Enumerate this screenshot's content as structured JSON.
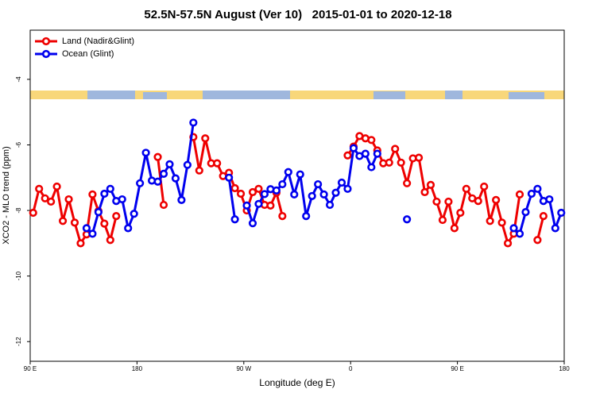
{
  "chart_data": {
    "type": "line",
    "title": "52.5N-57.5N August (Ver 10)   2015-01-01 to 2020-12-18",
    "xlabel": "Longitude (deg E)",
    "ylabel": "XCO2 - MLO trend (ppm)",
    "x": [
      92.5,
      97.5,
      102.5,
      107.5,
      112.5,
      117.5,
      122.5,
      127.5,
      132.5,
      137.5,
      142.5,
      147.5,
      152.5,
      157.5,
      162.5,
      167.5,
      172.5,
      177.5,
      182.5,
      187.5,
      192.5,
      197.5,
      202.5,
      207.5,
      212.5,
      217.5,
      222.5,
      227.5,
      232.5,
      237.5,
      242.5,
      247.5,
      252.5,
      257.5,
      262.5,
      267.5,
      272.5,
      277.5,
      282.5,
      287.5,
      292.5,
      297.5,
      302.5,
      307.5,
      312.5,
      317.5,
      322.5,
      327.5,
      332.5,
      337.5,
      342.5,
      347.5,
      352.5,
      357.5,
      362.5,
      367.5,
      372.5,
      377.5,
      382.5,
      387.5,
      392.5,
      397.5,
      402.5,
      407.5,
      412.5,
      417.5,
      422.5,
      427.5,
      432.5,
      437.5,
      442.5,
      447.5,
      452.5,
      457.5,
      462.5,
      467.5,
      472.5,
      477.5,
      482.5,
      487.5,
      492.5,
      497.5,
      502.5,
      507.5,
      512.5,
      517.5,
      522.5,
      527.5,
      532.5,
      537.5
    ],
    "series": [
      {
        "name": "Land (Nadir&Glint)",
        "color": "#ee0000",
        "values": [
          -8.07,
          -7.34,
          -7.63,
          -7.73,
          -7.27,
          -8.32,
          -7.66,
          -8.37,
          -9.0,
          -8.73,
          -7.51,
          -8.02,
          -8.4,
          -8.9,
          -8.17,
          null,
          null,
          null,
          null,
          null,
          null,
          -6.37,
          -7.83,
          null,
          null,
          null,
          null,
          -5.76,
          -6.78,
          -5.8,
          -6.56,
          -6.56,
          -6.95,
          -6.85,
          -7.32,
          -7.49,
          -8.0,
          -7.44,
          -7.34,
          -7.83,
          -7.85,
          -7.46,
          -8.17,
          null,
          null,
          null,
          null,
          null,
          null,
          null,
          null,
          null,
          null,
          -6.32,
          -6.05,
          -5.73,
          -5.8,
          -5.85,
          -6.17,
          -6.56,
          -6.54,
          -6.12,
          -6.54,
          -7.17,
          -6.41,
          -6.39,
          -7.44,
          -7.22,
          -7.73,
          -8.29,
          -7.73,
          -8.54,
          -8.07,
          -7.34,
          -7.63,
          -7.71,
          -7.27,
          -8.32,
          -7.68,
          -8.37,
          -9.0,
          -8.71,
          -7.51,
          null,
          null,
          -8.9,
          -8.17,
          null,
          null,
          null
        ]
      },
      {
        "name": "Ocean (Glint)",
        "color": "#0000ee",
        "values": [
          null,
          null,
          null,
          null,
          null,
          null,
          null,
          null,
          null,
          -8.54,
          -8.71,
          -8.05,
          -7.49,
          -7.34,
          -7.71,
          -7.66,
          -8.54,
          -8.1,
          -7.17,
          -6.24,
          -7.09,
          -7.12,
          -6.88,
          -6.59,
          -7.02,
          -7.68,
          -6.61,
          -5.32,
          null,
          null,
          null,
          null,
          null,
          -7.0,
          -8.27,
          null,
          -7.85,
          -8.39,
          -7.8,
          -7.5,
          -7.35,
          -7.39,
          -7.2,
          -6.83,
          -7.51,
          -6.9,
          -8.17,
          -7.56,
          -7.2,
          -7.51,
          -7.83,
          -7.46,
          -7.15,
          -7.34,
          -6.1,
          -6.34,
          -6.27,
          -6.68,
          -6.27,
          null,
          null,
          null,
          null,
          -8.27,
          null,
          null,
          null,
          null,
          null,
          null,
          null,
          null,
          null,
          null,
          null,
          null,
          null,
          null,
          null,
          null,
          null,
          -8.54,
          -8.71,
          -8.05,
          -7.49,
          -7.34,
          -7.71,
          -7.66,
          -8.54,
          -8.07
        ]
      }
    ],
    "xlim": [
      90,
      540
    ],
    "xticks": [
      {
        "value": 90,
        "label": "90 E"
      },
      180,
      {
        "value": 270,
        "label": "90 W"
      },
      {
        "value": 360,
        "label": "0"
      },
      {
        "value": 450,
        "label": "90 E"
      },
      {
        "value": 540,
        "label": "180"
      }
    ],
    "ylim": [
      -12.6,
      -2.5
    ],
    "yticks": [
      -4,
      -6,
      -8,
      -10,
      -12
    ],
    "grid": false,
    "legend": "top-left"
  }
}
